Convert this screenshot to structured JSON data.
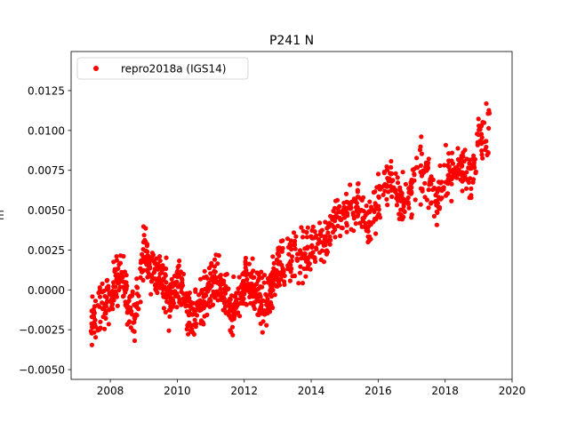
{
  "chart_data": {
    "type": "scatter",
    "title": "P241 N",
    "xlabel": "",
    "ylabel": "m",
    "xlim": [
      2006.83,
      2020.0
    ],
    "ylim": [
      -0.00561,
      0.01495
    ],
    "xticks": [
      2008,
      2010,
      2012,
      2014,
      2016,
      2018,
      2020
    ],
    "xtick_labels": [
      "2008",
      "2010",
      "2012",
      "2014",
      "2016",
      "2018",
      "2020"
    ],
    "yticks": [
      -0.005,
      -0.0025,
      0.0,
      0.0025,
      0.005,
      0.0075,
      0.01,
      0.0125
    ],
    "ytick_labels": [
      "−0.0050",
      "−0.0025",
      "0.0000",
      "0.0025",
      "0.0050",
      "0.0075",
      "0.0100",
      "0.0125"
    ],
    "grid": false,
    "legend": {
      "placement": "top-left",
      "entries": [
        "repro2018a (IGS14)"
      ]
    },
    "series": [
      {
        "name": "repro2018a (IGS14)",
        "color": "#ff0000",
        "marker": "circle",
        "scatter_spread": 0.0014,
        "points_per_segment": 28,
        "trend_x": [
          2007.4,
          2007.6,
          2007.9,
          2008.1,
          2008.3,
          2008.5,
          2008.75,
          2009.0,
          2009.2,
          2009.4,
          2009.6,
          2009.8,
          2010.0,
          2010.2,
          2010.4,
          2010.6,
          2010.8,
          2011.0,
          2011.2,
          2011.4,
          2011.6,
          2011.8,
          2012.0,
          2012.2,
          2012.4,
          2012.6,
          2012.8,
          2013.0,
          2013.3,
          2013.6,
          2013.9,
          2014.2,
          2014.5,
          2014.8,
          2015.1,
          2015.4,
          2015.7,
          2016.0,
          2016.3,
          2016.6,
          2016.9,
          2017.2,
          2017.5,
          2017.8,
          2018.1,
          2018.4,
          2018.7,
          2019.0,
          2019.35
        ],
        "trend_y": [
          -0.0025,
          -0.0015,
          -0.0005,
          0.0,
          0.001,
          -0.0005,
          -0.0015,
          0.0025,
          0.0015,
          0.001,
          0.0005,
          -0.001,
          0.001,
          -0.0005,
          -0.0015,
          -0.0015,
          -0.0005,
          0.0,
          0.0005,
          -0.0005,
          -0.0015,
          -0.0005,
          0.0005,
          0.0005,
          -0.0005,
          -0.001,
          0.0,
          0.0015,
          0.002,
          0.002,
          0.0025,
          0.003,
          0.0035,
          0.0045,
          0.005,
          0.0055,
          0.004,
          0.0055,
          0.007,
          0.006,
          0.0055,
          0.0075,
          0.007,
          0.0055,
          0.0075,
          0.0075,
          0.007,
          0.0095,
          0.01
        ]
      }
    ]
  }
}
